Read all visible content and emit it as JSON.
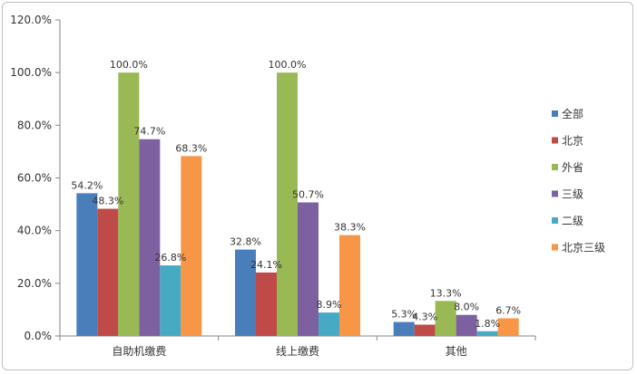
{
  "chart_data": {
    "type": "bar",
    "categories": [
      "自助机缴费",
      "线上缴费",
      "其他"
    ],
    "series": [
      {
        "name": "全部",
        "color": "#4a7ebb",
        "values": [
          54.2,
          32.8,
          5.3
        ]
      },
      {
        "name": "北京",
        "color": "#be4b48",
        "values": [
          48.3,
          24.1,
          4.3
        ]
      },
      {
        "name": "外省",
        "color": "#98b954",
        "values": [
          100.0,
          100.0,
          13.3
        ]
      },
      {
        "name": "三级",
        "color": "#7d60a0",
        "values": [
          74.7,
          50.7,
          8.0
        ]
      },
      {
        "name": "二级",
        "color": "#46aac5",
        "values": [
          26.8,
          8.9,
          1.8
        ]
      },
      {
        "name": "北京三级",
        "color": "#f79646",
        "values": [
          68.3,
          38.3,
          6.7
        ]
      }
    ],
    "data_labels": [
      [
        "54.2%",
        "48.3%",
        "100.0%",
        "74.7%",
        "26.8%",
        "68.3%"
      ],
      [
        "32.8%",
        "24.1%",
        "100.0%",
        "50.7%",
        "8.9%",
        "38.3%"
      ],
      [
        "5.3%",
        "4.3%",
        "13.3%",
        "8.0%",
        "1.8%",
        "6.7%"
      ]
    ],
    "ylim": [
      0,
      120
    ],
    "yticks": [
      "0.0%",
      "20.0%",
      "40.0%",
      "60.0%",
      "80.0%",
      "100.0%",
      "120.0%"
    ],
    "ytick_values": [
      0,
      20,
      40,
      60,
      80,
      100,
      120
    ],
    "grid": false,
    "legend_position": "right",
    "title": "",
    "xlabel": "",
    "ylabel": ""
  }
}
